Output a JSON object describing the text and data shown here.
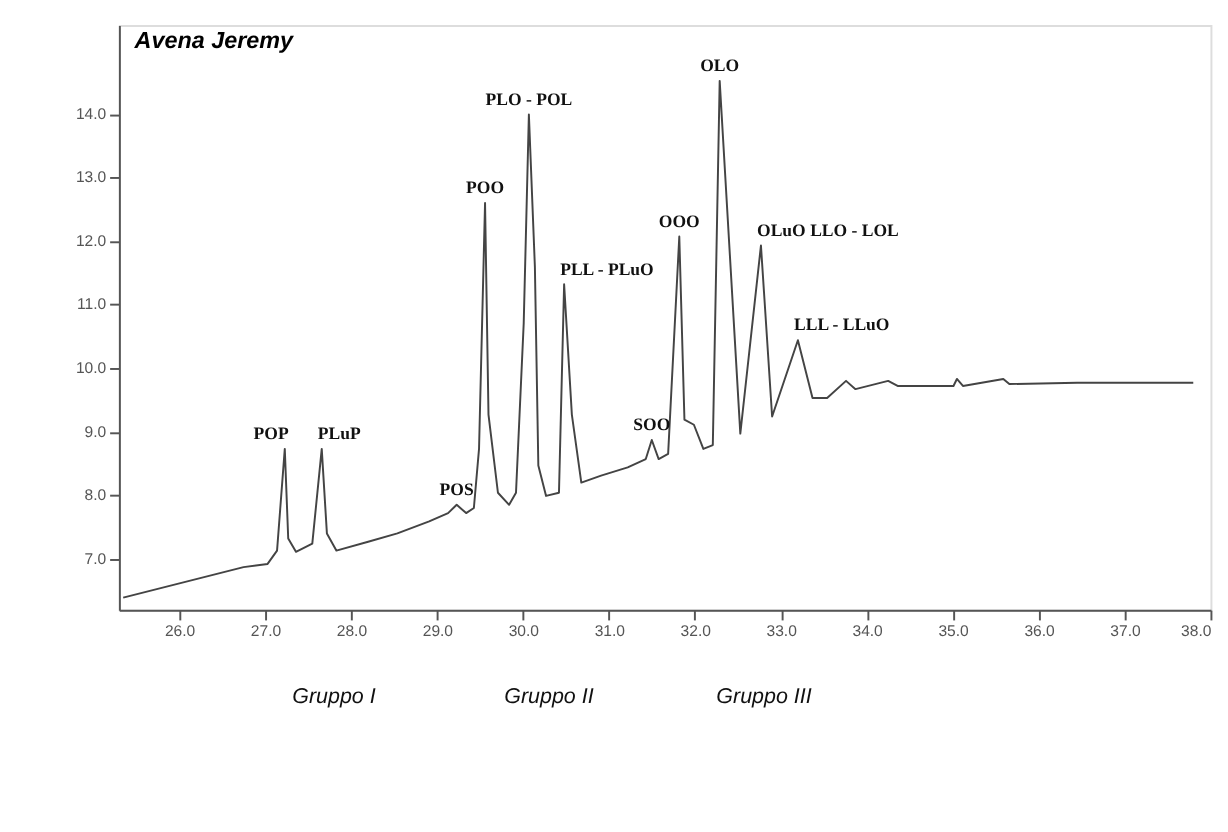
{
  "chart_data": {
    "type": "line",
    "title": "Avena Jeremy",
    "x": [
      25.35,
      26.75,
      27.03,
      27.14,
      27.23,
      27.27,
      27.36,
      27.55,
      27.66,
      27.72,
      27.83,
      28.2,
      28.54,
      28.91,
      29.13,
      29.23,
      29.34,
      29.43,
      29.49,
      29.56,
      29.6,
      29.71,
      29.84,
      29.92,
      30.01,
      30.07,
      30.14,
      30.18,
      30.27,
      30.42,
      30.48,
      30.57,
      30.68,
      30.91,
      31.22,
      31.43,
      31.5,
      31.58,
      31.69,
      31.82,
      31.88,
      31.99,
      32.1,
      32.21,
      32.29,
      32.53,
      32.77,
      32.9,
      33.2,
      33.37,
      33.54,
      33.76,
      33.87,
      34.25,
      34.36,
      35.01,
      35.05,
      35.12,
      35.59,
      35.66,
      36.45,
      37.38,
      37.8
    ],
    "series": [
      {
        "color": "#444444",
        "values": [
          6.39,
          6.87,
          6.92,
          7.13,
          8.73,
          7.32,
          7.11,
          7.24,
          8.73,
          7.4,
          7.13,
          7.27,
          7.4,
          7.59,
          7.72,
          7.85,
          7.72,
          7.8,
          8.73,
          12.6,
          9.27,
          8.04,
          7.85,
          8.04,
          10.71,
          13.99,
          11.59,
          8.47,
          7.99,
          8.04,
          11.32,
          9.27,
          8.2,
          8.31,
          8.44,
          8.57,
          8.87,
          8.57,
          8.65,
          12.07,
          9.19,
          9.11,
          8.73,
          8.79,
          14.52,
          8.97,
          11.93,
          9.24,
          10.44,
          9.53,
          9.53,
          9.8,
          9.67,
          9.8,
          9.72,
          9.72,
          9.83,
          9.72,
          9.83,
          9.75,
          9.77,
          9.77,
          9.77
        ]
      }
    ],
    "xlim": [
      25.3,
      38.0
    ],
    "xticks": [
      {
        "value": 26,
        "label": "26.0"
      },
      {
        "value": 27,
        "label": "27.0"
      },
      {
        "value": 28,
        "label": "28.0"
      },
      {
        "value": 29,
        "label": "29.0"
      },
      {
        "value": 30,
        "label": "30.0"
      },
      {
        "value": 31,
        "label": "31.0"
      },
      {
        "value": 32,
        "label": "32.0"
      },
      {
        "value": 33,
        "label": "33.0"
      },
      {
        "value": 34,
        "label": "34.0"
      },
      {
        "value": 35,
        "label": "35.0"
      },
      {
        "value": 36,
        "label": "36.0"
      },
      {
        "value": 37,
        "label": "37.0"
      },
      {
        "value": 38,
        "label": "38.0"
      }
    ],
    "ylim": [
      6.2,
      15.4
    ],
    "yticks": [
      {
        "value": 7,
        "label": "7.0"
      },
      {
        "value": 8,
        "label": "8.0"
      },
      {
        "value": 9,
        "label": "9.0"
      },
      {
        "value": 10,
        "label": "10.0"
      },
      {
        "value": 11,
        "label": "11.0"
      },
      {
        "value": 12,
        "label": "12.0"
      },
      {
        "value": 13,
        "label": "13.0"
      },
      {
        "value": 14,
        "label": "14.0"
      }
    ],
    "grid": false,
    "marker": "none",
    "line_style": "solid",
    "annotations": [
      {
        "text": "POP",
        "x": 27.23,
        "y": 8.73
      },
      {
        "text": "PLuP",
        "x": 27.66,
        "y": 8.73
      },
      {
        "text": "POS",
        "x": 29.23,
        "y": 7.85
      },
      {
        "text": "POO",
        "x": 29.56,
        "y": 12.6
      },
      {
        "text": "PLO - POL",
        "x": 30.07,
        "y": 13.99
      },
      {
        "text": "PLL - PLuO",
        "x": 30.48,
        "y": 11.32
      },
      {
        "text": "SOO",
        "x": 31.5,
        "y": 8.87
      },
      {
        "text": "OOO",
        "x": 31.82,
        "y": 12.07
      },
      {
        "text": "OLO",
        "x": 32.29,
        "y": 14.52
      },
      {
        "text": "OLuO  LLO - LOL",
        "x": 32.77,
        "y": 11.93
      },
      {
        "text": "LLL - LLuO",
        "x": 33.2,
        "y": 10.44
      },
      "Gruppo I",
      "Gruppo II",
      "Gruppo III"
    ]
  }
}
